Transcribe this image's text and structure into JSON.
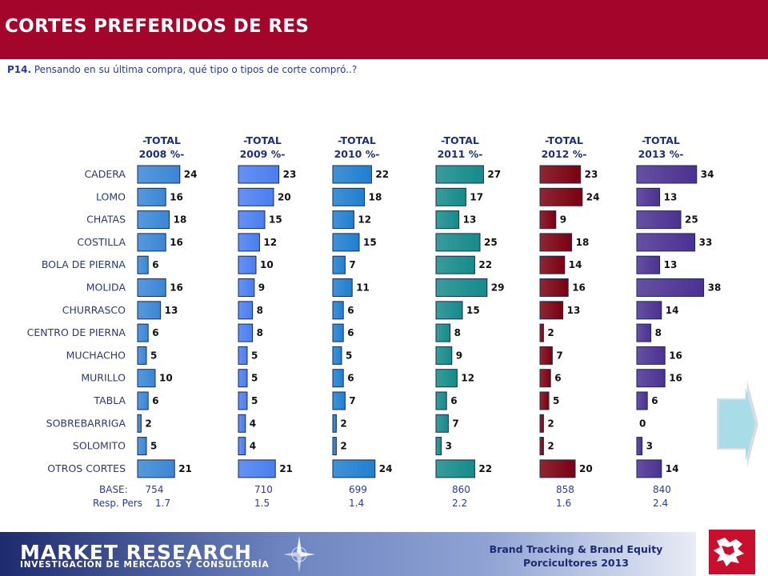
{
  "header": {
    "title": "CORTES PREFERIDOS DE RES",
    "question_prefix": "P14.",
    "question_text": " Pensando en su última compra, qué tipo o tipos de corte compró..?"
  },
  "chart_data": {
    "type": "bar",
    "orientation": "horizontal",
    "categories": [
      "CADERA",
      "LOMO",
      "CHATAS",
      "COSTILLA",
      "BOLA DE PIERNA",
      "MOLIDA",
      "CHURRASCO",
      "CENTRO DE PIERNA",
      "MUCHACHO",
      "MURILLO",
      "TABLA",
      "SOBREBARRIGA",
      "SOLOMITO",
      "OTROS CORTES"
    ],
    "series": [
      {
        "name": "-TOTAL 2008 %-",
        "color": "#3a86d6",
        "values": [
          24,
          16,
          18,
          16,
          6,
          16,
          13,
          6,
          5,
          10,
          6,
          2,
          5,
          21
        ],
        "base": "754",
        "resp_pers": "1.7"
      },
      {
        "name": "-TOTAL 2009 %-",
        "color": "#4a7ef0",
        "values": [
          23,
          20,
          15,
          12,
          10,
          9,
          8,
          8,
          5,
          5,
          5,
          4,
          4,
          21
        ],
        "base": "710",
        "resp_pers": "1.5"
      },
      {
        "name": "-TOTAL 2010 %-",
        "color": "#1f7fd0",
        "values": [
          22,
          18,
          12,
          15,
          7,
          11,
          6,
          6,
          5,
          6,
          7,
          2,
          2,
          24
        ],
        "base": "699",
        "resp_pers": "1.4"
      },
      {
        "name": "-TOTAL 2011 %-",
        "color": "#168a8a",
        "values": [
          27,
          17,
          13,
          25,
          22,
          29,
          15,
          8,
          9,
          12,
          6,
          7,
          3,
          22
        ],
        "base": "860",
        "resp_pers": "2.2"
      },
      {
        "name": "-TOTAL 2012 %-",
        "color": "#7a0010",
        "values": [
          23,
          24,
          9,
          18,
          14,
          16,
          13,
          2,
          7,
          6,
          5,
          2,
          2,
          20
        ],
        "base": "858",
        "resp_pers": "1.6"
      },
      {
        "name": "-TOTAL 2013 %-",
        "color": "#4b3192",
        "values": [
          34,
          13,
          25,
          33,
          13,
          38,
          14,
          8,
          16,
          16,
          6,
          0,
          3,
          14
        ],
        "base": "840",
        "resp_pers": "2.4"
      }
    ],
    "base_label": "BASE:",
    "resp_label": "Resp. Pers"
  },
  "footer": {
    "brand": "MARKET RESEARCH",
    "brand_sub": "INVESTIGACIÓN DE MERCADOS Y CONSULTORÍA",
    "study_line1": "Brand Tracking & Brand Equity",
    "study_line2": "Porcicultores 2013"
  },
  "icons": {
    "compass": "compass-rose-icon",
    "logo": "red-map-logo-icon",
    "next": "next-arrow-icon"
  }
}
